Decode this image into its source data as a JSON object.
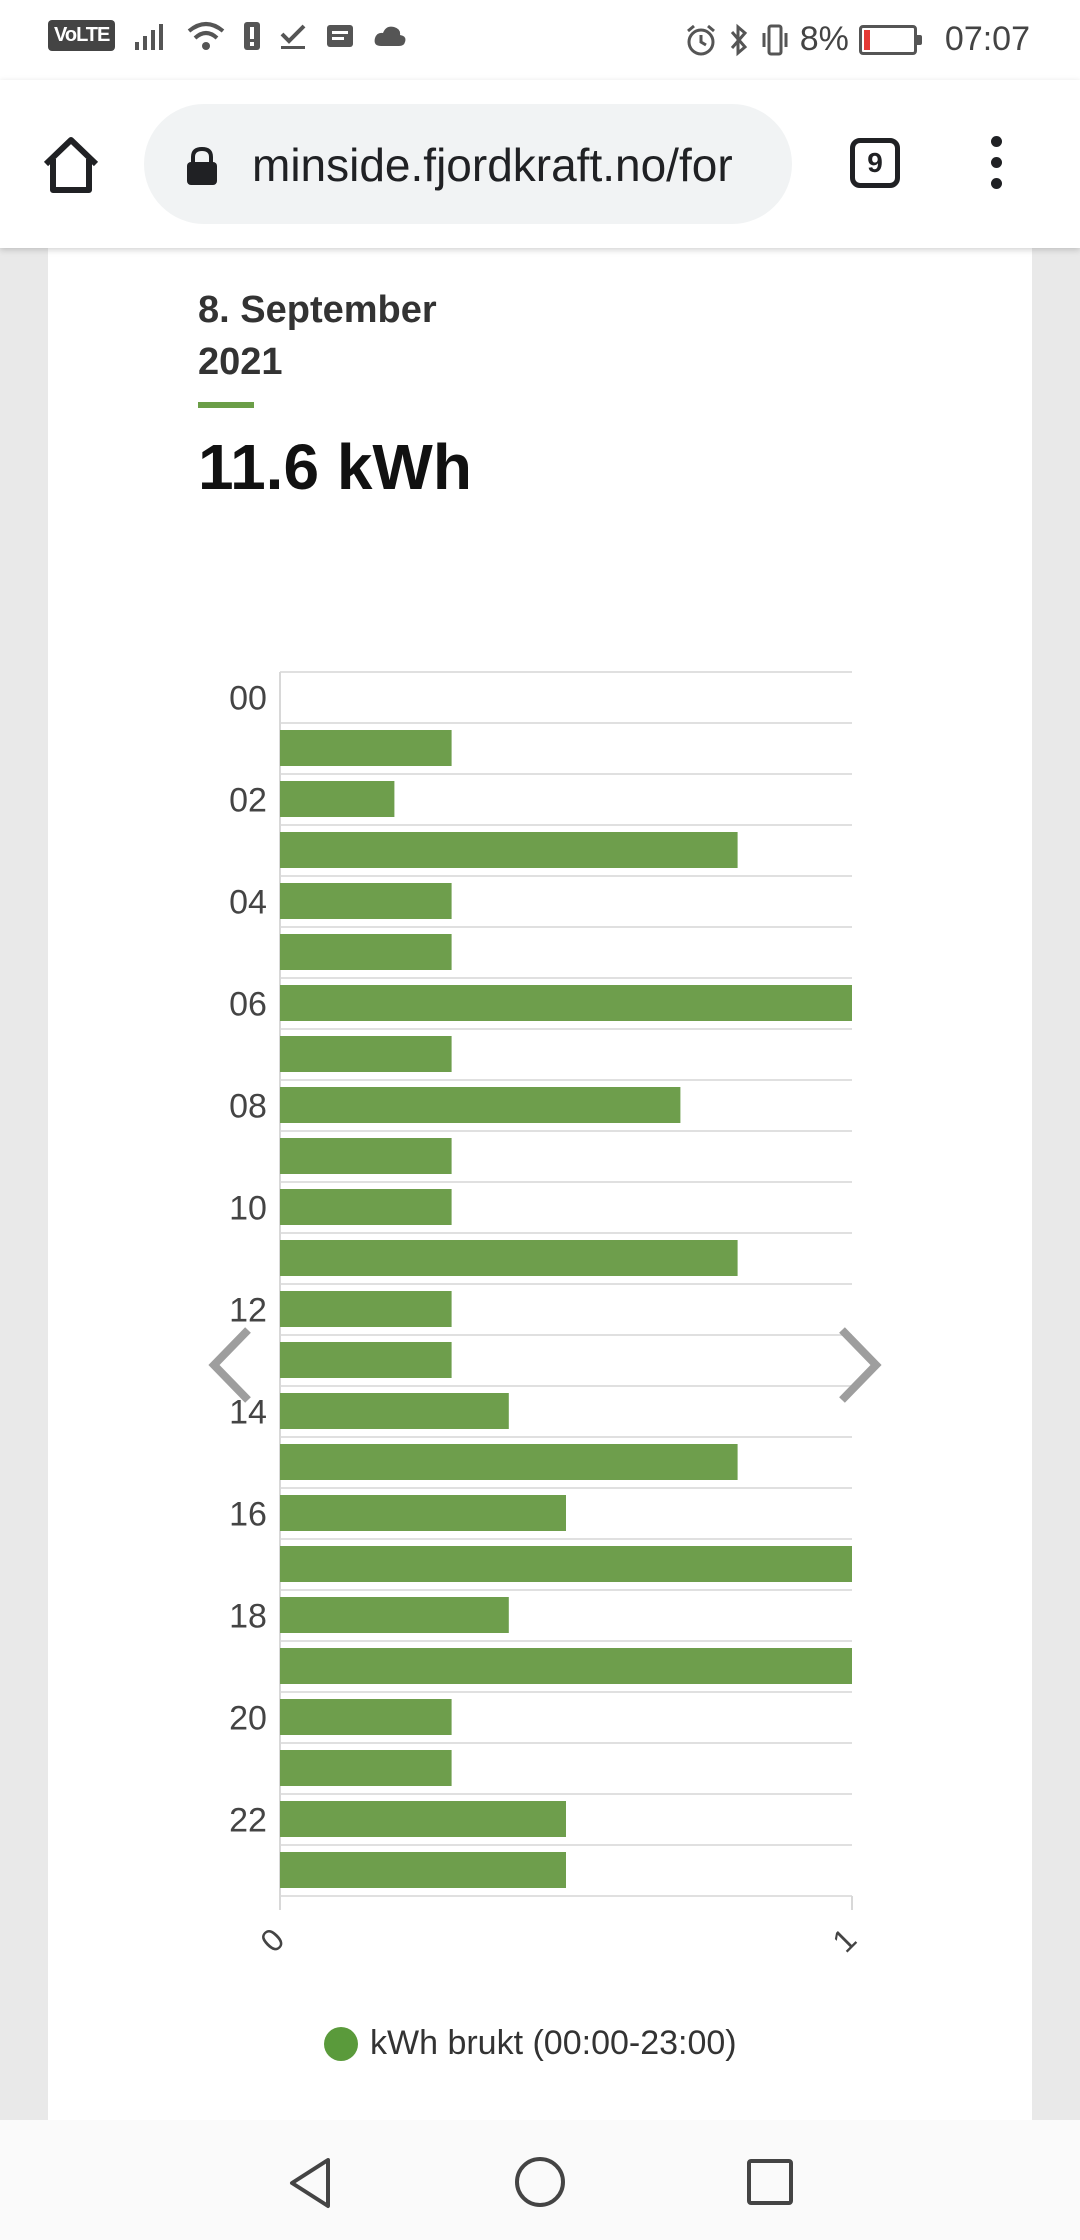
{
  "status_bar": {
    "volte": "VoLTE",
    "battery_percent": "8%",
    "time": "07:07"
  },
  "browser": {
    "url": "minside.fjordkraft.no/for",
    "tab_count": "9"
  },
  "summary": {
    "date": "8. September 2021",
    "total": "11.6 kWh"
  },
  "chart_data": {
    "type": "bar",
    "orientation": "horizontal",
    "categories": [
      "00",
      "01",
      "02",
      "03",
      "04",
      "05",
      "06",
      "07",
      "08",
      "09",
      "10",
      "11",
      "12",
      "13",
      "14",
      "15",
      "16",
      "17",
      "18",
      "19",
      "20",
      "21",
      "22",
      "23"
    ],
    "category_tick_labels": [
      "00",
      "02",
      "04",
      "06",
      "08",
      "10",
      "12",
      "14",
      "16",
      "18",
      "20",
      "22"
    ],
    "values": [
      0,
      0.3,
      0.2,
      0.8,
      0.3,
      0.3,
      1.0,
      0.3,
      0.7,
      0.3,
      0.3,
      0.8,
      0.3,
      0.3,
      0.4,
      0.8,
      0.5,
      1.0,
      0.4,
      1.0,
      0.3,
      0.3,
      0.5,
      0.5
    ],
    "xlim": [
      0,
      1
    ],
    "x_tick_labels": [
      "0",
      "1"
    ],
    "grid": true,
    "bar_color": "#6e9e4c",
    "legend": {
      "label": "kWh brukt (00:00-23:00)",
      "position": "bottom",
      "color": "#5a9a3b"
    }
  }
}
